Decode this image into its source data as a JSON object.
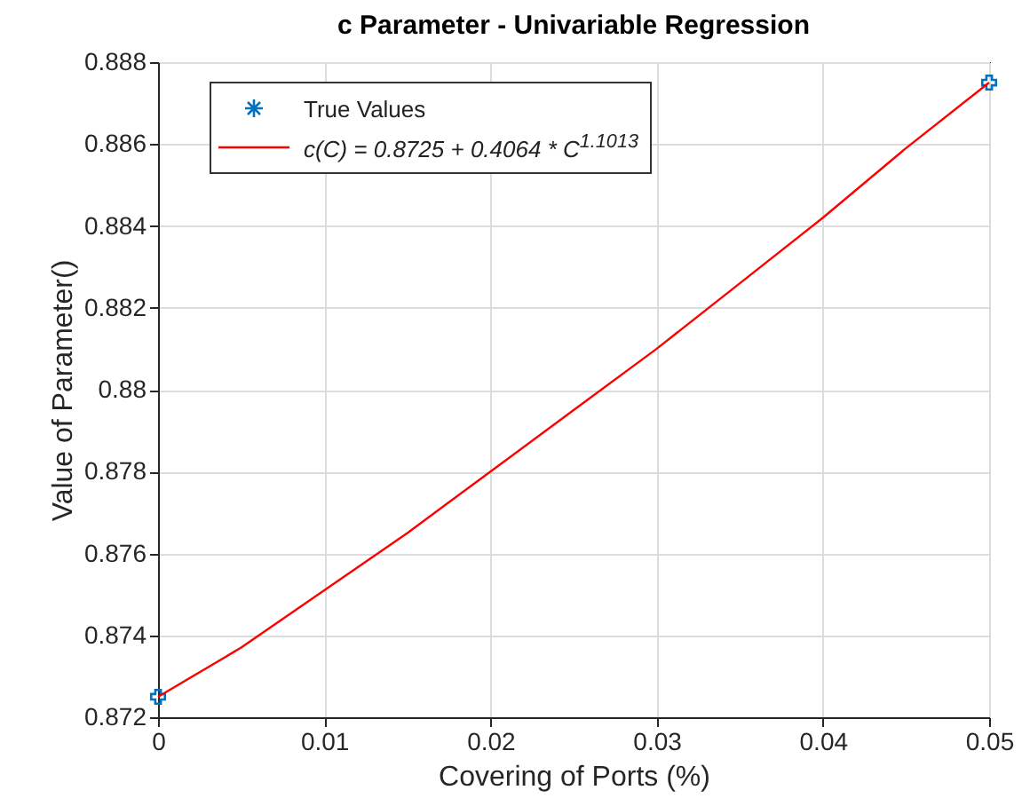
{
  "chart_data": {
    "type": "scatter",
    "title": "c Parameter - Univariable Regression",
    "xlabel": "Covering of Ports (%)",
    "ylabel": "Value of Parameter()",
    "xlim": [
      0,
      0.05
    ],
    "xticks": [
      0,
      0.01,
      0.02,
      0.03,
      0.04,
      0.05
    ],
    "ylim": [
      0.872,
      0.888
    ],
    "yticks": [
      0.872,
      0.874,
      0.876,
      0.878,
      0.88,
      0.882,
      0.884,
      0.886,
      0.888
    ],
    "grid": true,
    "legend": "top left",
    "series": [
      {
        "name": "True Values",
        "marker": "cross",
        "color": "#0072bd",
        "x": [
          0,
          0.05
        ],
        "values": [
          0.8725,
          0.8875
        ]
      },
      {
        "name": "c(C) = 0.8725 + 0.4064 * C$^{1.1013}$",
        "type": "line",
        "line_style": "solid",
        "color": "#ff0000",
        "x": [
          0,
          0.005,
          0.01,
          0.015,
          0.02,
          0.025,
          0.03,
          0.035,
          0.04,
          0.045,
          0.05
        ],
        "values": [
          0.8725,
          0.8737,
          0.8751,
          0.8765,
          0.878,
          0.8795,
          0.881,
          0.8826,
          0.8842,
          0.8859,
          0.8875
        ]
      }
    ]
  }
}
